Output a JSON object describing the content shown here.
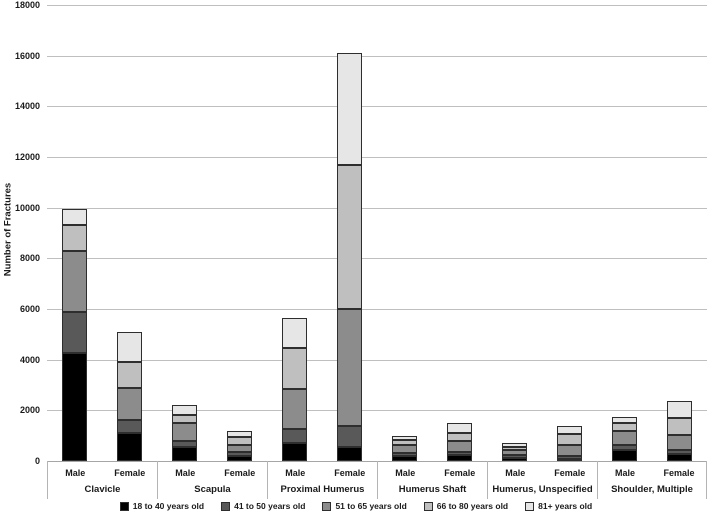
{
  "chart_data": {
    "type": "bar",
    "subtype": "stacked",
    "title": "",
    "ylabel": "Number of Fractures",
    "xlabel": "",
    "ylim": [
      0,
      18000
    ],
    "y_tick_step": 2000,
    "y_ticks": [
      0,
      2000,
      4000,
      6000,
      8000,
      10000,
      12000,
      14000,
      16000,
      18000
    ],
    "grid": "horizontal",
    "legend_position": "bottom",
    "series": [
      {
        "name": "18 to 40 years old",
        "color": "#000000"
      },
      {
        "name": "41 to 50 years old",
        "color": "#595959"
      },
      {
        "name": "51 to 65 years old",
        "color": "#8c8c8c"
      },
      {
        "name": "66 to 80 years old",
        "color": "#bfbfbf"
      },
      {
        "name": "81+ years old",
        "color": "#e6e6e6"
      }
    ],
    "groups": [
      {
        "label": "Clavicle",
        "bars": [
          {
            "sex": "Male",
            "values": [
              4250,
              1650,
              2400,
              1000,
              650
            ],
            "total": 9950
          },
          {
            "sex": "Female",
            "values": [
              1100,
              500,
              1300,
              1000,
              1200
            ],
            "total": 5100
          }
        ]
      },
      {
        "label": "Scapula",
        "bars": [
          {
            "sex": "Male",
            "values": [
              550,
              250,
              700,
              300,
              400
            ],
            "total": 2200
          },
          {
            "sex": "Female",
            "values": [
              200,
              150,
              300,
              280,
              270
            ],
            "total": 1200
          }
        ]
      },
      {
        "label": "Proximal Humerus",
        "bars": [
          {
            "sex": "Male",
            "values": [
              700,
              550,
              1600,
              1600,
              1200
            ],
            "total": 5650
          },
          {
            "sex": "Female",
            "values": [
              550,
              850,
              4600,
              5700,
              4400
            ],
            "total": 16100
          }
        ]
      },
      {
        "label": "Humerus Shaft",
        "bars": [
          {
            "sex": "Male",
            "values": [
              200,
              130,
              300,
              200,
              170
            ],
            "total": 1000
          },
          {
            "sex": "Female",
            "values": [
              220,
              130,
              430,
              330,
              390
            ],
            "total": 1500
          }
        ]
      },
      {
        "label": "Humerus, Unspecified",
        "bars": [
          {
            "sex": "Male",
            "values": [
              130,
              90,
              210,
              130,
              140
            ],
            "total": 700
          },
          {
            "sex": "Female",
            "values": [
              80,
              100,
              470,
              400,
              350
            ],
            "total": 1400
          }
        ]
      },
      {
        "label": "Shoulder, Multiple",
        "bars": [
          {
            "sex": "Male",
            "values": [
              450,
              200,
              520,
              330,
              250
            ],
            "total": 1750
          },
          {
            "sex": "Female",
            "values": [
              290,
              130,
              610,
              670,
              650
            ],
            "total": 2350
          }
        ]
      }
    ],
    "style": {
      "gridline_color": "#bfbfbf",
      "axis_color": "#a6a6a6",
      "divider_color": "#b4b4b4",
      "segment_border_color": "#2e2e2e",
      "text_color": "#1a1a1a",
      "background": "#ffffff"
    }
  }
}
